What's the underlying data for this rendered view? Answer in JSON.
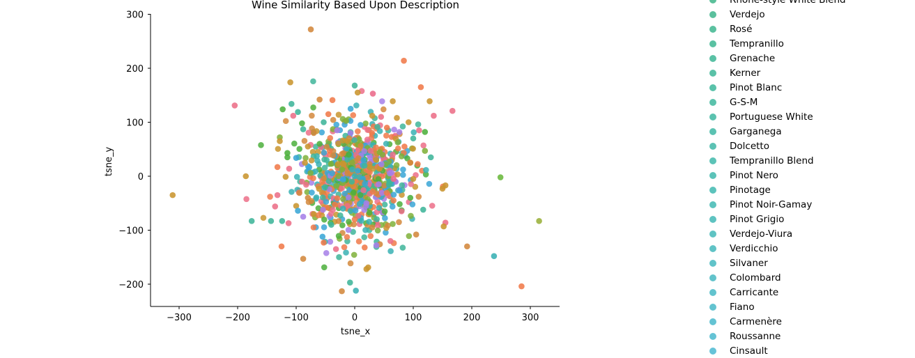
{
  "chart_data": {
    "type": "scatter",
    "title": "Wine Similarity Based Upon Description",
    "xlabel": "tsne_x",
    "ylabel": "tsne_y",
    "xlim": [
      -350,
      350
    ],
    "ylim": [
      -243,
      300
    ],
    "xticks": [
      -300,
      -200,
      -100,
      0,
      100,
      200,
      300
    ],
    "yticks": [
      -200,
      -100,
      0,
      100,
      200,
      300
    ],
    "xtick_labels": [
      "−300",
      "−200",
      "−100",
      "0",
      "100",
      "200",
      "300"
    ],
    "ytick_labels": [
      "−200",
      "−100",
      "0",
      "100",
      "200",
      "300"
    ],
    "grid": false,
    "legend_placement": "right",
    "legend": [
      {
        "name": "Rhône-style White Blend",
        "color": "#3fb58a"
      },
      {
        "name": "Verdejo",
        "color": "#3eb58c"
      },
      {
        "name": "Rosé",
        "color": "#3eb68f"
      },
      {
        "name": "Tempranillo",
        "color": "#3db692"
      },
      {
        "name": "Grenache",
        "color": "#3db695"
      },
      {
        "name": "Kerner",
        "color": "#3db698"
      },
      {
        "name": "Pinot Blanc",
        "color": "#3db79b"
      },
      {
        "name": "G-S-M",
        "color": "#3eb79e"
      },
      {
        "name": "Portuguese White",
        "color": "#3eb7a1"
      },
      {
        "name": "Garganega",
        "color": "#3eb7a4"
      },
      {
        "name": "Dolcetto",
        "color": "#3fb7a7"
      },
      {
        "name": "Tempranillo Blend",
        "color": "#3fb8aa"
      },
      {
        "name": "Pinot Nero",
        "color": "#40b8ad"
      },
      {
        "name": "Pinotage",
        "color": "#40b8b0"
      },
      {
        "name": "Pinot Noir-Gamay",
        "color": "#41b8b3"
      },
      {
        "name": "Pinot Grigio",
        "color": "#42b8b6"
      },
      {
        "name": "Verdejo-Viura",
        "color": "#43b8b9"
      },
      {
        "name": "Verdicchio",
        "color": "#44b8bc"
      },
      {
        "name": "Silvaner",
        "color": "#45b8bf"
      },
      {
        "name": "Colombard",
        "color": "#46b8c2"
      },
      {
        "name": "Carricante",
        "color": "#47b8c5"
      },
      {
        "name": "Fiano",
        "color": "#48b8c8"
      },
      {
        "name": "Carmenère",
        "color": "#49b8cb"
      },
      {
        "name": "Roussanne",
        "color": "#4ab8ce"
      },
      {
        "name": "Cinsault",
        "color": "#4bb8d1"
      }
    ],
    "series_points": [
      {
        "x": -75,
        "y": 272,
        "c": "#d3883c"
      },
      {
        "x": 84,
        "y": 214,
        "c": "#f07a4a"
      },
      {
        "x": -110,
        "y": 174,
        "c": "#c9952f"
      },
      {
        "x": 0,
        "y": 168,
        "c": "#3fb59a"
      },
      {
        "x": 113,
        "y": 165,
        "c": "#f07a4a"
      },
      {
        "x": 5,
        "y": 155,
        "c": "#c9952f"
      },
      {
        "x": 31,
        "y": 153,
        "c": "#ea6a8a"
      },
      {
        "x": -205,
        "y": 131,
        "c": "#ec6e88"
      },
      {
        "x": 167,
        "y": 121,
        "c": "#ec6e88"
      },
      {
        "x": -123,
        "y": 124,
        "c": "#4caf3c"
      },
      {
        "x": -108,
        "y": 134,
        "c": "#3fb59a"
      },
      {
        "x": -97,
        "y": 119,
        "c": "#3fb59a"
      },
      {
        "x": 135,
        "y": 112,
        "c": "#ec6e88"
      },
      {
        "x": -105,
        "y": 112,
        "c": "#ec6e88"
      },
      {
        "x": 128,
        "y": 139,
        "c": "#c9952f"
      },
      {
        "x": -60,
        "y": 142,
        "c": "#d3883c"
      },
      {
        "x": -38,
        "y": 141,
        "c": "#f07a4a"
      },
      {
        "x": -7,
        "y": 125,
        "c": "#3aa6d6"
      },
      {
        "x": 65,
        "y": 139,
        "c": "#c9952f"
      },
      {
        "x": -128,
        "y": 72,
        "c": "#7fb03a"
      },
      {
        "x": -128,
        "y": 65,
        "c": "#c9952f"
      },
      {
        "x": 120,
        "y": 82,
        "c": "#4caf3c"
      },
      {
        "x": 120,
        "y": 47,
        "c": "#7fb03a"
      },
      {
        "x": -115,
        "y": 43,
        "c": "#4caf3c"
      },
      {
        "x": -115,
        "y": 35,
        "c": "#4caf3c"
      },
      {
        "x": -100,
        "y": 34,
        "c": "#3aa6d6"
      },
      {
        "x": 130,
        "y": 35,
        "c": "#3fb59a"
      },
      {
        "x": -132,
        "y": 17,
        "c": "#f07a4a"
      },
      {
        "x": -112,
        "y": 14,
        "c": "#ec6e88"
      },
      {
        "x": -186,
        "y": 0,
        "c": "#c9952f"
      },
      {
        "x": -118,
        "y": -1,
        "c": "#c9952f"
      },
      {
        "x": 249,
        "y": -2,
        "c": "#6ab83c"
      },
      {
        "x": 155,
        "y": -17,
        "c": "#c9952f"
      },
      {
        "x": 150,
        "y": -23,
        "c": "#c9952f"
      },
      {
        "x": -311,
        "y": -35,
        "c": "#c9952f"
      },
      {
        "x": -132,
        "y": -35,
        "c": "#ec6e88"
      },
      {
        "x": -136,
        "y": -56,
        "c": "#ec6e88"
      },
      {
        "x": -100,
        "y": -55,
        "c": "#c9952f"
      },
      {
        "x": -97,
        "y": -64,
        "c": "#3aa6d6"
      },
      {
        "x": 117,
        "y": -62,
        "c": "#3fb59a"
      },
      {
        "x": -176,
        "y": -83,
        "c": "#3fb59a"
      },
      {
        "x": -143,
        "y": -83,
        "c": "#3fb59a"
      },
      {
        "x": -124,
        "y": -83,
        "c": "#3fb59a"
      },
      {
        "x": -113,
        "y": -87,
        "c": "#ec6e88"
      },
      {
        "x": 155,
        "y": -86,
        "c": "#ec6e88"
      },
      {
        "x": 152,
        "y": -93,
        "c": "#c9952f"
      },
      {
        "x": 315,
        "y": -83,
        "c": "#9ab03a"
      },
      {
        "x": -88,
        "y": -75,
        "c": "#a67fe8"
      },
      {
        "x": 105,
        "y": -108,
        "c": "#d3883c"
      },
      {
        "x": -125,
        "y": -130,
        "c": "#f07a4a"
      },
      {
        "x": 192,
        "y": -130,
        "c": "#d3883c"
      },
      {
        "x": -55,
        "y": -112,
        "c": "#3aa6d6"
      },
      {
        "x": -53,
        "y": -123,
        "c": "#f07a4a"
      },
      {
        "x": -32,
        "y": -135,
        "c": "#ec6e88"
      },
      {
        "x": 17,
        "y": -132,
        "c": "#f07a4a"
      },
      {
        "x": 43,
        "y": -126,
        "c": "#d3883c"
      },
      {
        "x": 37,
        "y": -128,
        "c": "#a67fe8"
      },
      {
        "x": 61,
        "y": -120,
        "c": "#ec6e88"
      },
      {
        "x": -88,
        "y": -153,
        "c": "#d3883c"
      },
      {
        "x": 238,
        "y": -148,
        "c": "#39b1b4"
      },
      {
        "x": 23,
        "y": -169,
        "c": "#c9952f"
      },
      {
        "x": 20,
        "y": -172,
        "c": "#c9952f"
      },
      {
        "x": -8,
        "y": -197,
        "c": "#3fb59a"
      },
      {
        "x": 285,
        "y": -204,
        "c": "#f07a4a"
      },
      {
        "x": -22,
        "y": -213,
        "c": "#d3883c"
      },
      {
        "x": 2,
        "y": -212,
        "c": "#39b1b4"
      },
      {
        "x": -90,
        "y": 98,
        "c": "#4caf3c"
      },
      {
        "x": -88,
        "y": 87,
        "c": "#3fb59a"
      },
      {
        "x": -53,
        "y": 100,
        "c": "#3fb59a"
      },
      {
        "x": -45,
        "y": 115,
        "c": "#f07a4a"
      },
      {
        "x": 30,
        "y": 112,
        "c": "#c9952f"
      },
      {
        "x": 45,
        "y": 110,
        "c": "#ec6e88"
      },
      {
        "x": 72,
        "y": 108,
        "c": "#c9952f"
      },
      {
        "x": 92,
        "y": 100,
        "c": "#c9952f"
      },
      {
        "x": 110,
        "y": 85,
        "c": "#ec6e88"
      },
      {
        "x": -70,
        "y": 80,
        "c": "#d3883c"
      },
      {
        "x": -30,
        "y": 85,
        "c": "#a67fe8"
      },
      {
        "x": 10,
        "y": 95,
        "c": "#3aa6d6"
      },
      {
        "x": 55,
        "y": 90,
        "c": "#f07a4a"
      },
      {
        "x": 100,
        "y": 70,
        "c": "#3fb59a"
      },
      {
        "x": -80,
        "y": 55,
        "c": "#c9952f"
      },
      {
        "x": -60,
        "y": 60,
        "c": "#4caf3c"
      },
      {
        "x": 85,
        "y": 55,
        "c": "#f07a4a"
      },
      {
        "x": -85,
        "y": 25,
        "c": "#c9952f"
      },
      {
        "x": 95,
        "y": 25,
        "c": "#d3883c"
      },
      {
        "x": -90,
        "y": -10,
        "c": "#ec6e88"
      },
      {
        "x": 100,
        "y": -5,
        "c": "#c9952f"
      },
      {
        "x": -80,
        "y": -40,
        "c": "#d3883c"
      },
      {
        "x": 95,
        "y": -40,
        "c": "#4caf3c"
      },
      {
        "x": -70,
        "y": -70,
        "c": "#c9952f"
      },
      {
        "x": 80,
        "y": -65,
        "c": "#ec6e88"
      },
      {
        "x": -40,
        "y": -90,
        "c": "#3fb59a"
      },
      {
        "x": 30,
        "y": -95,
        "c": "#d3883c"
      },
      {
        "x": 0,
        "y": -80,
        "c": "#f07a4a"
      },
      {
        "x": -20,
        "y": -60,
        "c": "#39b1b4"
      },
      {
        "x": 20,
        "y": -50,
        "c": "#a67fe8"
      },
      {
        "x": -10,
        "y": 40,
        "c": "#4caf3c"
      },
      {
        "x": 15,
        "y": 30,
        "c": "#3aa6d6"
      },
      {
        "x": 0,
        "y": 0,
        "c": "#39b1b4"
      },
      {
        "x": 5,
        "y": 10,
        "c": "#3aa6d6"
      },
      {
        "x": -5,
        "y": -10,
        "c": "#3fb59a"
      }
    ]
  }
}
